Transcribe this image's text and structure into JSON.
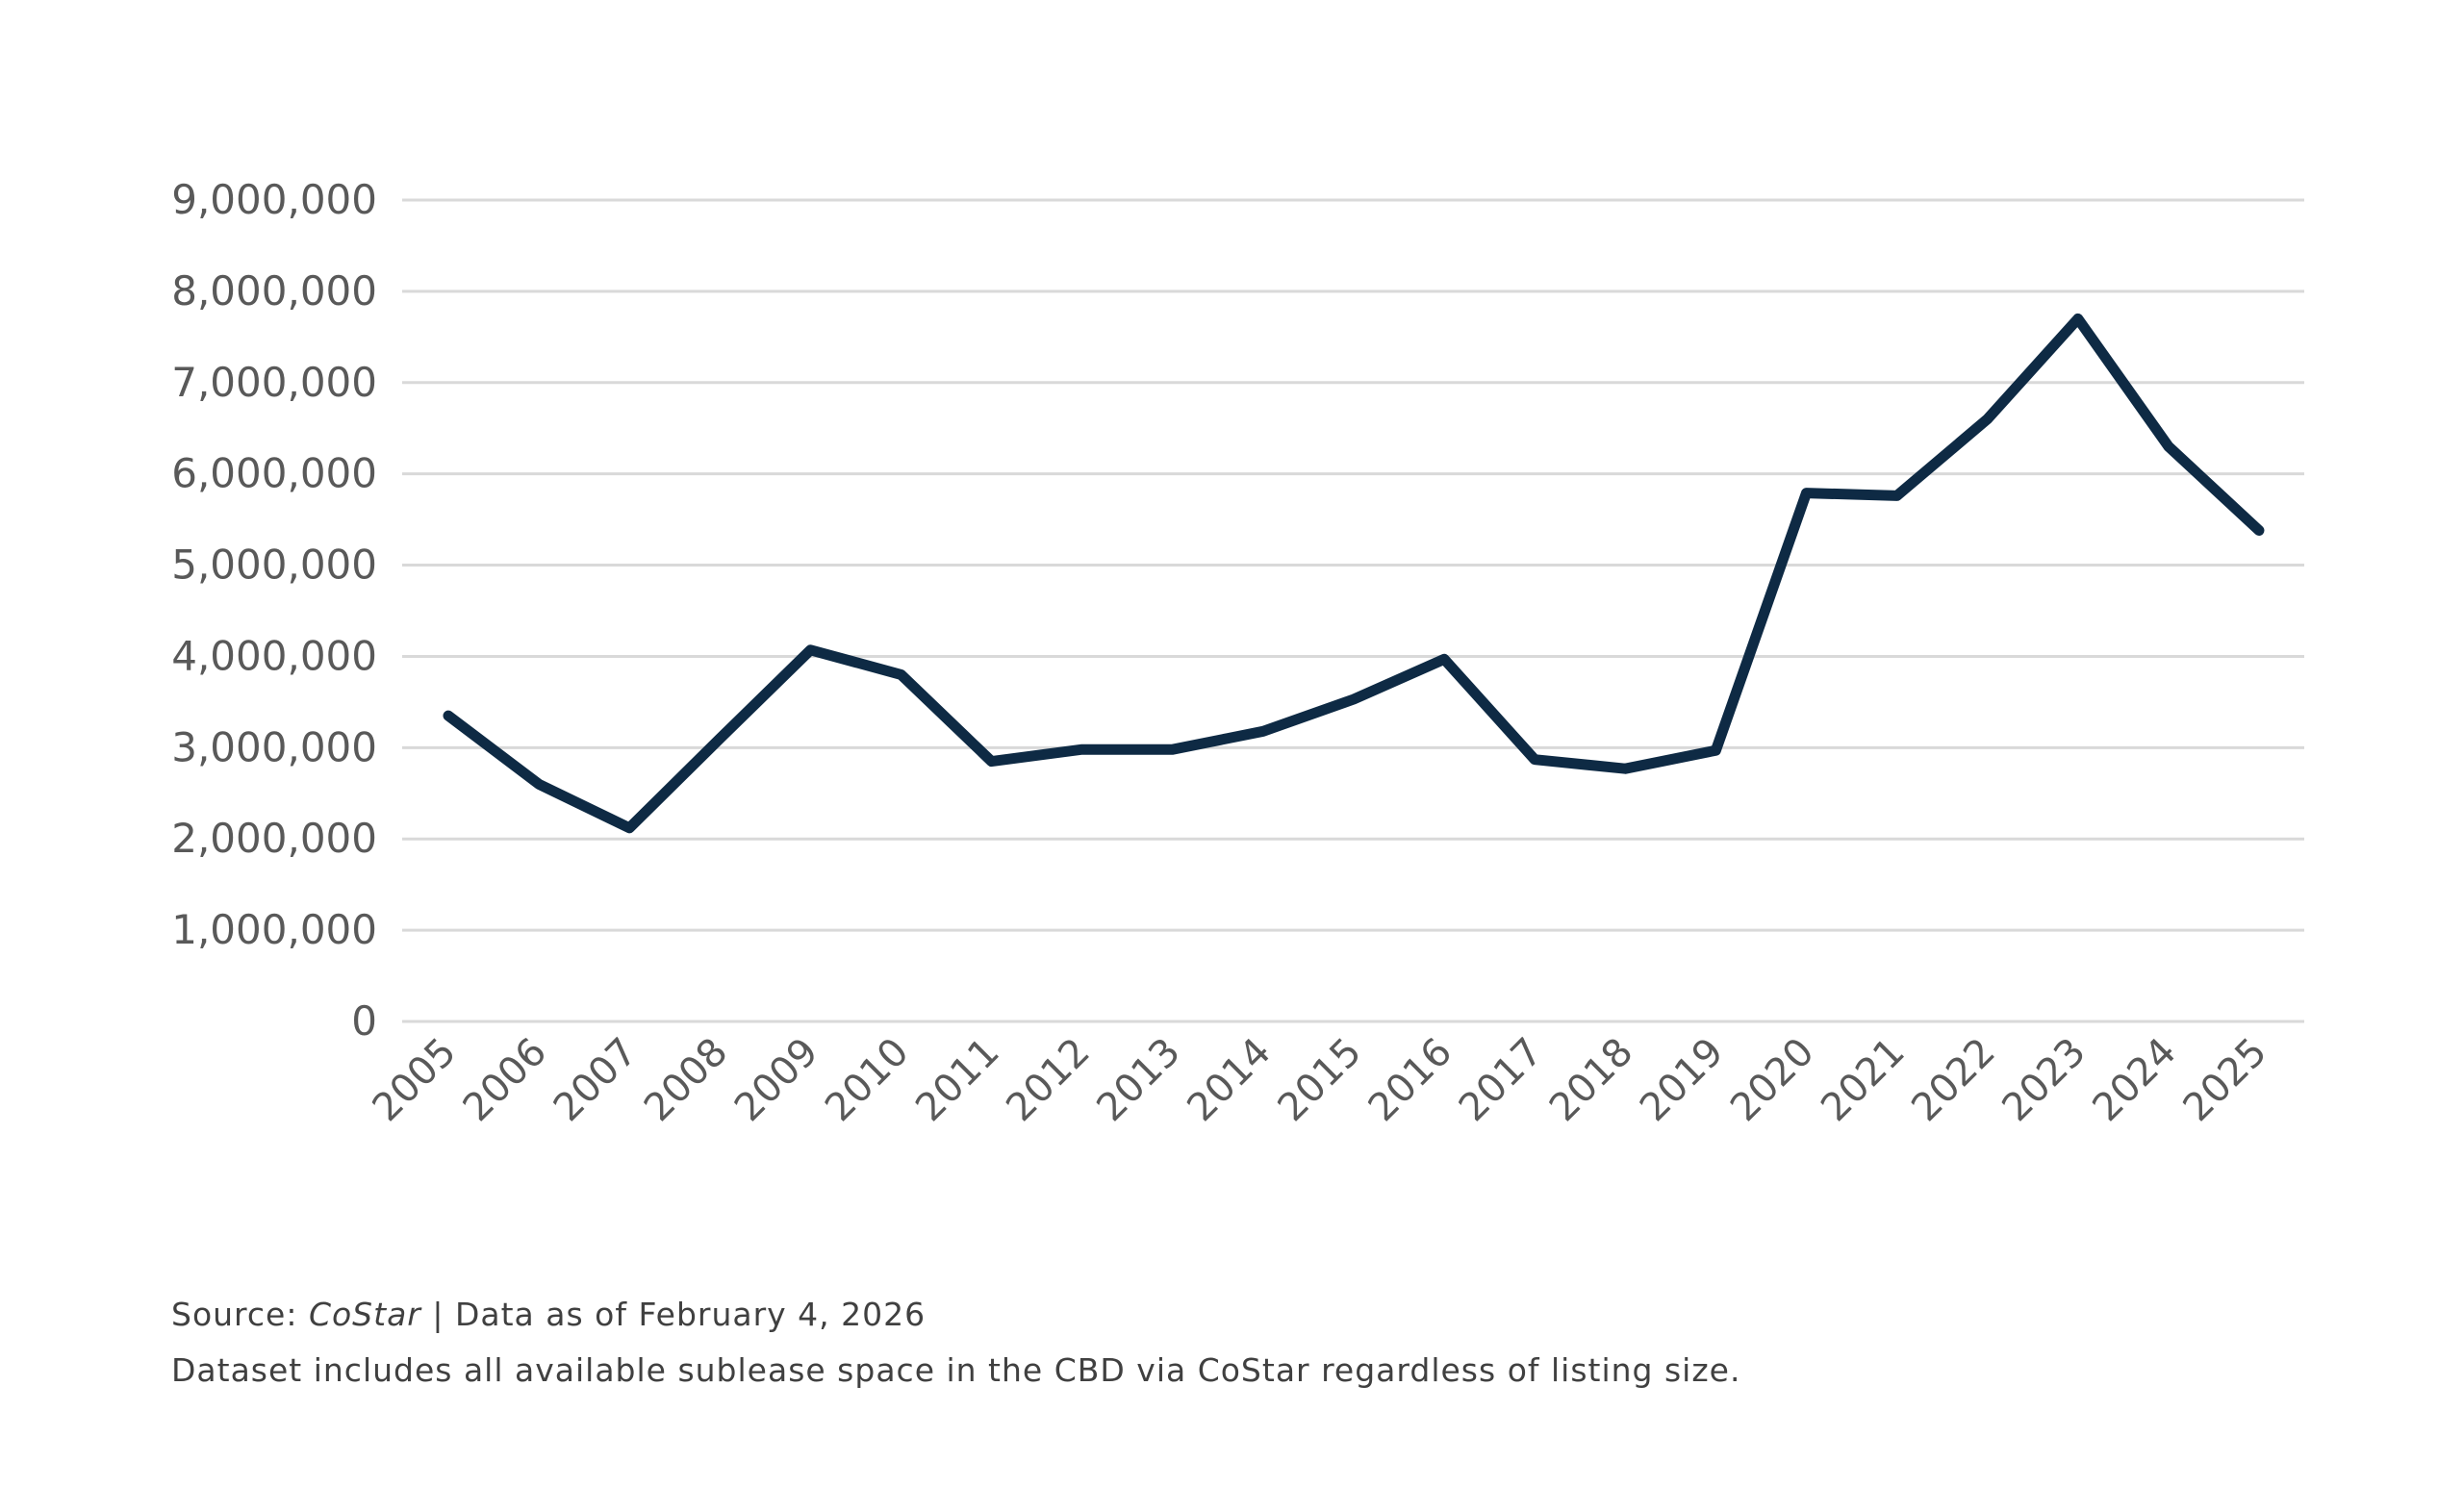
{
  "colors": {
    "series": "#0e2a44",
    "grid": "#d9d9d9",
    "tick_text": "#595959",
    "note_text": "#404040",
    "background": "#ffffff"
  },
  "chart_data": {
    "type": "line",
    "title": "",
    "xlabel": "",
    "ylabel": "",
    "ylim": [
      0,
      9000000
    ],
    "y_ticks": [
      0,
      1000000,
      2000000,
      3000000,
      4000000,
      5000000,
      6000000,
      7000000,
      8000000,
      9000000
    ],
    "y_tick_labels": [
      "0",
      "1,000,000",
      "2,000,000",
      "3,000,000",
      "4,000,000",
      "5,000,000",
      "6,000,000",
      "7,000,000",
      "8,000,000",
      "9,000,000"
    ],
    "grid": true,
    "legend": "none",
    "categories": [
      "2005",
      "2006",
      "2007",
      "2008",
      "2009",
      "2010",
      "2011",
      "2012",
      "2013",
      "2014",
      "2015",
      "2016",
      "2017",
      "2018",
      "2019",
      "2020",
      "2021",
      "2022",
      "2023",
      "2024",
      "2025"
    ],
    "series": [
      {
        "values": [
          3350000,
          2600000,
          2120000,
          3100000,
          4070000,
          3800000,
          2850000,
          2980000,
          2980000,
          3180000,
          3530000,
          3970000,
          2870000,
          2770000,
          2970000,
          5790000,
          5760000,
          6600000,
          7700000,
          6300000,
          5380000
        ]
      }
    ]
  },
  "notes": {
    "source_prefix": "Source: ",
    "source_name": "CoStar",
    "source_suffix": " | Data as of February 4, 2026",
    "dataset": "Dataset includes all available sublease space in the CBD via CoStar regardless of listing size."
  }
}
